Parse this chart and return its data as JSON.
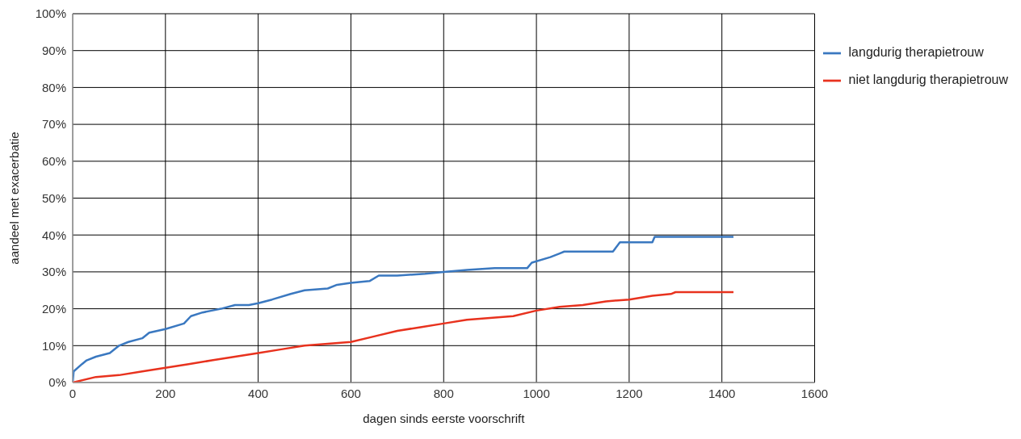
{
  "chart_data": {
    "type": "line",
    "xlabel": "dagen sinds eerste voorschrift",
    "ylabel": "aandeel met exacerbatie",
    "xlim": [
      0,
      1600
    ],
    "xticks": [
      0,
      200,
      400,
      600,
      800,
      1000,
      1200,
      1400,
      1600
    ],
    "ylim": [
      0,
      100
    ],
    "yticks": [
      {
        "value": 0,
        "label": "0%"
      },
      {
        "value": 10,
        "label": "10%"
      },
      {
        "value": 20,
        "label": "20%"
      },
      {
        "value": 30,
        "label": "30%"
      },
      {
        "value": 40,
        "label": "40%"
      },
      {
        "value": 50,
        "label": "50%"
      },
      {
        "value": 60,
        "label": "60%"
      },
      {
        "value": 70,
        "label": "70%"
      },
      {
        "value": 80,
        "label": "80%"
      },
      {
        "value": 90,
        "label": "90%"
      },
      {
        "value": 100,
        "label": "100%"
      }
    ],
    "grid": true,
    "legend": "top right",
    "marker": "none",
    "line_style": "solid",
    "series": [
      {
        "name": "langdurig therapietrouw",
        "color": "#3a78c0",
        "x": [
          0,
          2,
          20,
          30,
          50,
          80,
          100,
          120,
          150,
          165,
          200,
          240,
          255,
          280,
          300,
          320,
          350,
          380,
          400,
          430,
          470,
          500,
          550,
          570,
          600,
          640,
          660,
          700,
          760,
          800,
          850,
          910,
          980,
          990,
          1030,
          1050,
          1060,
          1165,
          1180,
          1250,
          1255,
          1425
        ],
        "values": [
          0,
          3,
          5,
          6,
          7,
          8,
          10,
          11,
          12,
          13.5,
          14.5,
          16,
          18,
          19,
          19.5,
          20,
          21,
          21,
          21.5,
          22.5,
          24,
          25,
          25.5,
          26.5,
          27,
          27.5,
          29,
          29,
          29.5,
          30,
          30.5,
          31,
          31,
          32.5,
          34,
          35,
          35.5,
          35.5,
          38,
          38,
          39.5,
          39.5
        ]
      },
      {
        "name": "niet langdurig therapietrouw",
        "color": "#e8321e",
        "x": [
          0,
          50,
          100,
          150,
          200,
          250,
          300,
          350,
          400,
          450,
          500,
          550,
          600,
          650,
          700,
          750,
          800,
          850,
          900,
          950,
          1000,
          1050,
          1100,
          1150,
          1200,
          1250,
          1290,
          1300,
          1425
        ],
        "values": [
          0,
          1.5,
          2,
          3,
          4,
          5,
          6,
          7,
          8,
          9,
          10,
          10.5,
          11,
          12.5,
          14,
          15,
          16,
          17,
          17.5,
          18,
          19.5,
          20.5,
          21,
          22,
          22.5,
          23.5,
          24,
          24.5,
          24.5
        ]
      }
    ]
  }
}
